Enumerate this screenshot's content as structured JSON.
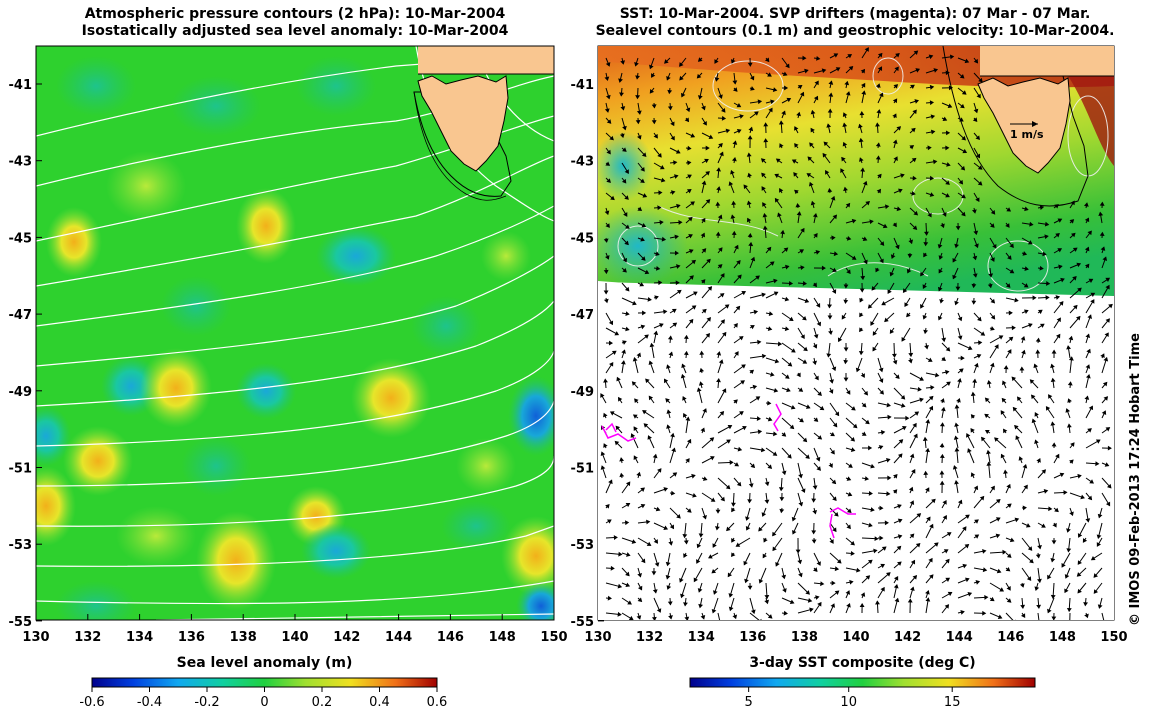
{
  "left_panel": {
    "title_line1": "Atmospheric pressure contours (2 hPa): 10-Mar-2004",
    "title_line2": "Isostatically adjusted sea level anomaly: 10-Mar-2004",
    "x_ticks": [
      "130",
      "132",
      "134",
      "136",
      "138",
      "140",
      "142",
      "144",
      "146",
      "148",
      "150"
    ],
    "y_ticks": [
      "-41",
      "-43",
      "-45",
      "-47",
      "-49",
      "-51",
      "-53",
      "-55"
    ],
    "colorbar_label": "Sea level anomaly (m)",
    "colorbar_ticks": [
      "-0.6",
      "-0.4",
      "-0.2",
      "0",
      "0.2",
      "0.4",
      "0.6"
    ]
  },
  "right_panel": {
    "title_line1": "SST: 10-Mar-2004. SVP drifters (magenta): 07 Mar - 07 Mar.",
    "title_line2": "Sealevel contours (0.1 m) and geostrophic velocity: 10-Mar-2004.",
    "x_ticks": [
      "130",
      "132",
      "134",
      "136",
      "138",
      "140",
      "142",
      "144",
      "146",
      "148",
      "150"
    ],
    "y_ticks": [
      "-41",
      "-43",
      "-45",
      "-47",
      "-49",
      "-51",
      "-53",
      "-55"
    ],
    "velocity_scale_label": "1 m/s",
    "colorbar_label": "3-day SST composite (deg C)",
    "colorbar_ticks": [
      "5",
      "10",
      "15"
    ]
  },
  "credit": "© IMOS 09-Feb-2013 17:24 Hobart Time",
  "colors": {
    "land": "#f9c690",
    "sla_background": "#2ed12e",
    "contour": "#ffffff",
    "drifter": "#ff00ff"
  }
}
